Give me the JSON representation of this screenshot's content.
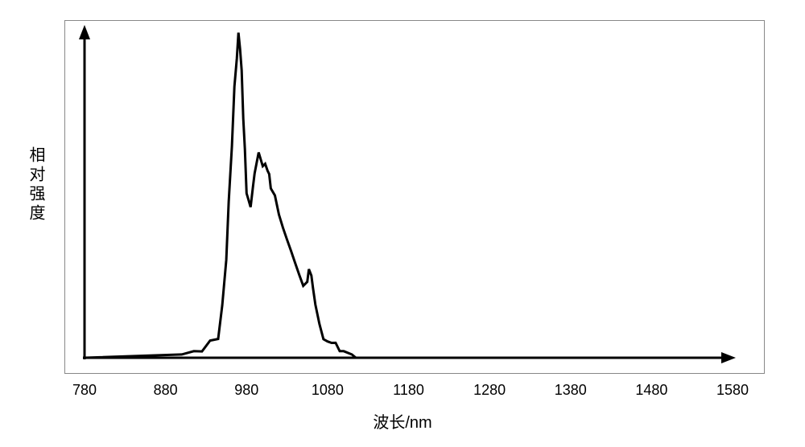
{
  "chart": {
    "type": "line",
    "xlabel": "波长/nm",
    "ylabel": "相对强度",
    "xlim": [
      780,
      1580
    ],
    "xtick_start": 780,
    "xtick_step": 100,
    "xtick_count": 9,
    "axis_color": "#000000",
    "axis_width": 3,
    "line_color": "#000000",
    "line_width": 3,
    "background_color": "#ffffff",
    "border_color": "#888888",
    "tick_fontsize": 18,
    "label_fontsize": 20,
    "xticks": [
      "780",
      "880",
      "980",
      "1080",
      "1180",
      "1280",
      "1380",
      "1480",
      "1580"
    ],
    "series": {
      "x": [
        780,
        900,
        915,
        925,
        935,
        945,
        950,
        955,
        958,
        962,
        965,
        968,
        970,
        972,
        974,
        976,
        978,
        980,
        982,
        985,
        988,
        990,
        995,
        1000,
        1003,
        1006,
        1008,
        1010,
        1015,
        1020,
        1025,
        1030,
        1035,
        1040,
        1045,
        1050,
        1055,
        1057,
        1060,
        1062,
        1065,
        1070,
        1075,
        1080,
        1085,
        1090,
        1095,
        1100,
        1110,
        1115,
        1580
      ],
      "y": [
        0,
        0.01,
        0.02,
        0.03,
        0.05,
        0.08,
        0.15,
        0.3,
        0.45,
        0.65,
        0.82,
        0.93,
        0.98,
        0.94,
        0.85,
        0.73,
        0.63,
        0.52,
        0.48,
        0.46,
        0.5,
        0.56,
        0.62,
        0.6,
        0.59,
        0.57,
        0.54,
        0.51,
        0.49,
        0.45,
        0.4,
        0.36,
        0.31,
        0.28,
        0.25,
        0.23,
        0.24,
        0.27,
        0.24,
        0.2,
        0.16,
        0.11,
        0.07,
        0.05,
        0.04,
        0.03,
        0.02,
        0.02,
        0.01,
        0,
        0
      ]
    },
    "jitter": 0.012
  }
}
